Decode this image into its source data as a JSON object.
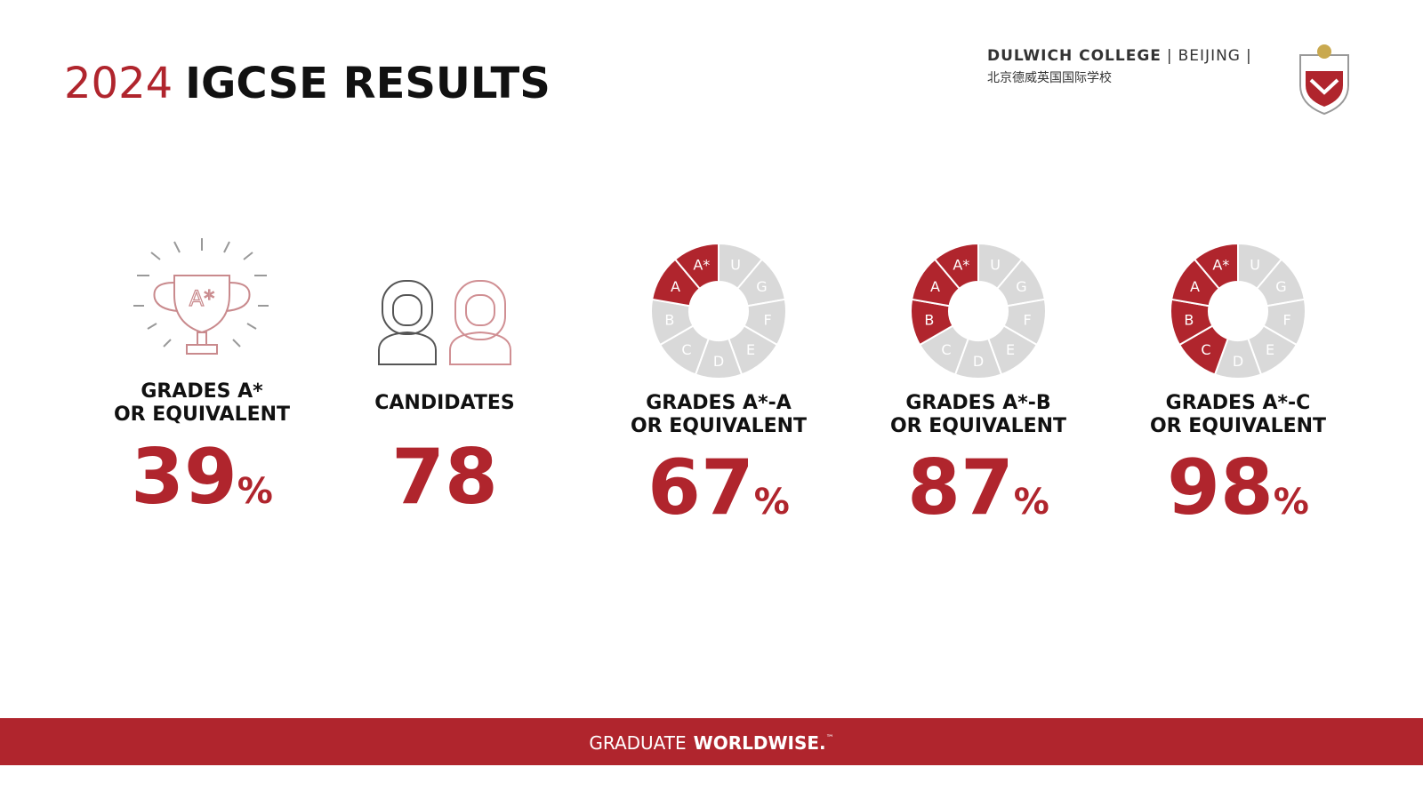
{
  "header": {
    "year": "2024",
    "title": "IGCSE RESULTS",
    "brand": "DULWICH COLLEGE",
    "campus": "BEIJING",
    "brand_cn": "北京德威英国国际学校"
  },
  "stats": [
    {
      "icon_text": "A*",
      "label": [
        "GRADES A*",
        "OR EQUIVALENT"
      ],
      "value": 39,
      "unit": "%"
    },
    {
      "label": [
        "CANDIDATES"
      ],
      "value": 78
    },
    {
      "donut": [
        {
          "label": "U",
          "color": "#d9d9d9"
        },
        {
          "label": "G",
          "color": "#d9d9d9"
        },
        {
          "label": "F",
          "color": "#d9d9d9"
        },
        {
          "label": "E",
          "color": "#d9d9d9"
        },
        {
          "label": "D",
          "color": "#d9d9d9"
        },
        {
          "label": "C",
          "color": "#d9d9d9"
        },
        {
          "label": "B",
          "color": "#d9d9d9"
        },
        {
          "label": "A",
          "color": "#b0252d"
        },
        {
          "label": "A*",
          "color": "#b0252d"
        }
      ],
      "label": [
        "GRADES A*-A",
        "OR EQUIVALENT"
      ],
      "value": 67,
      "unit": "%"
    },
    {
      "donut": [
        {
          "label": "U",
          "color": "#d9d9d9"
        },
        {
          "label": "G",
          "color": "#d9d9d9"
        },
        {
          "label": "F",
          "color": "#d9d9d9"
        },
        {
          "label": "E",
          "color": "#d9d9d9"
        },
        {
          "label": "D",
          "color": "#d9d9d9"
        },
        {
          "label": "C",
          "color": "#d9d9d9"
        },
        {
          "label": "B",
          "color": "#b0252d"
        },
        {
          "label": "A",
          "color": "#b0252d"
        },
        {
          "label": "A*",
          "color": "#b0252d"
        }
      ],
      "label": [
        "GRADES A*-B",
        "OR EQUIVALENT"
      ],
      "value": 87,
      "unit": "%"
    },
    {
      "donut": [
        {
          "label": "U",
          "color": "#d9d9d9"
        },
        {
          "label": "G",
          "color": "#d9d9d9"
        },
        {
          "label": "F",
          "color": "#d9d9d9"
        },
        {
          "label": "E",
          "color": "#d9d9d9"
        },
        {
          "label": "D",
          "color": "#d9d9d9"
        },
        {
          "label": "C",
          "color": "#b0252d"
        },
        {
          "label": "B",
          "color": "#b0252d"
        },
        {
          "label": "A",
          "color": "#b0252d"
        },
        {
          "label": "A*",
          "color": "#b0252d"
        }
      ],
      "label": [
        "GRADES A*-C",
        "OR EQUIVALENT"
      ],
      "value": 98,
      "unit": "%"
    }
  ],
  "footer": {
    "text": "GRADUATE",
    "brand": "WORLDWISE.",
    "mark": "™"
  }
}
